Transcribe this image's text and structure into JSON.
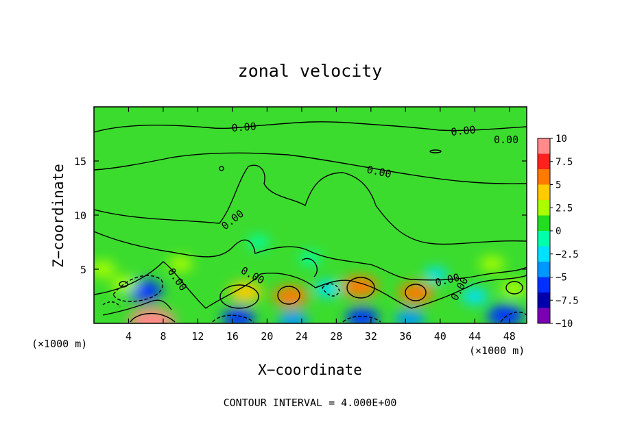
{
  "chart_data": {
    "type": "heatmap",
    "title": "zonal velocity",
    "xlabel": "X−coordinate",
    "ylabel": "Z−coordinate",
    "x_unit_left": "(×1000 m)",
    "x_unit_right": "(×1000 m)",
    "x_ticks": [
      "4",
      "8",
      "12",
      "16",
      "20",
      "24",
      "28",
      "32",
      "36",
      "40",
      "44",
      "48"
    ],
    "y_ticks": [
      "5",
      "10",
      "15"
    ],
    "xlim": [
      0,
      50
    ],
    "ylim": [
      0,
      20
    ],
    "contour_interval_text": "CONTOUR INTERVAL = 4.000E+00",
    "contour_labels": [
      "0.00",
      "0.00",
      "0.00",
      "0.00",
      "0.00",
      "0.00",
      "0.00",
      "0.00",
      "0.00"
    ],
    "colorbar": {
      "range": [
        -10,
        10
      ],
      "labels": [
        "10",
        "7.5",
        "5",
        "2.5",
        "0",
        "−2.5",
        "−5",
        "−7.5",
        "−10"
      ],
      "colors": [
        "#ff8a8a",
        "#ff2020",
        "#ff7a00",
        "#ffcc00",
        "#aaff00",
        "#22dd22",
        "#00ffaa",
        "#00e0ff",
        "#0096ff",
        "#0030ff",
        "#0000aa",
        "#7a00b4"
      ]
    },
    "field_features": [
      {
        "x": 6.7,
        "z": 0.2,
        "value": 9
      },
      {
        "x": 5.8,
        "z": 3.0,
        "value": -6
      },
      {
        "x": 3.5,
        "z": 3.6,
        "value": 3
      },
      {
        "x": 17.5,
        "z": 2.9,
        "value": 5
      },
      {
        "x": 22.7,
        "z": 2.5,
        "value": 5.5
      },
      {
        "x": 30.7,
        "z": 3.4,
        "value": 6
      },
      {
        "x": 37.2,
        "z": 2.8,
        "value": 5.5
      },
      {
        "x": 27.0,
        "z": 3.2,
        "value": -3
      },
      {
        "x": 16.7,
        "z": 0.5,
        "value": -5
      },
      {
        "x": 23.0,
        "z": 0.3,
        "value": -4
      },
      {
        "x": 31.0,
        "z": 0.5,
        "value": -5
      },
      {
        "x": 36.5,
        "z": 0.4,
        "value": -4
      },
      {
        "x": 47.5,
        "z": 0.7,
        "value": -6
      },
      {
        "x": 39.5,
        "z": 4.5,
        "value": -2
      },
      {
        "x": 44.0,
        "z": 2.5,
        "value": -3
      },
      {
        "x": 48.5,
        "z": 3.2,
        "value": 3
      },
      {
        "x": 1.0,
        "z": 5.0,
        "value": 3
      },
      {
        "x": 19.0,
        "z": 7.5,
        "value": -1.5
      },
      {
        "x": 25.0,
        "z": 6.0,
        "value": -1.5
      },
      {
        "x": 10.0,
        "z": 5.5,
        "value": 2.5
      },
      {
        "x": 46.0,
        "z": 5.5,
        "value": 2.5
      }
    ]
  }
}
